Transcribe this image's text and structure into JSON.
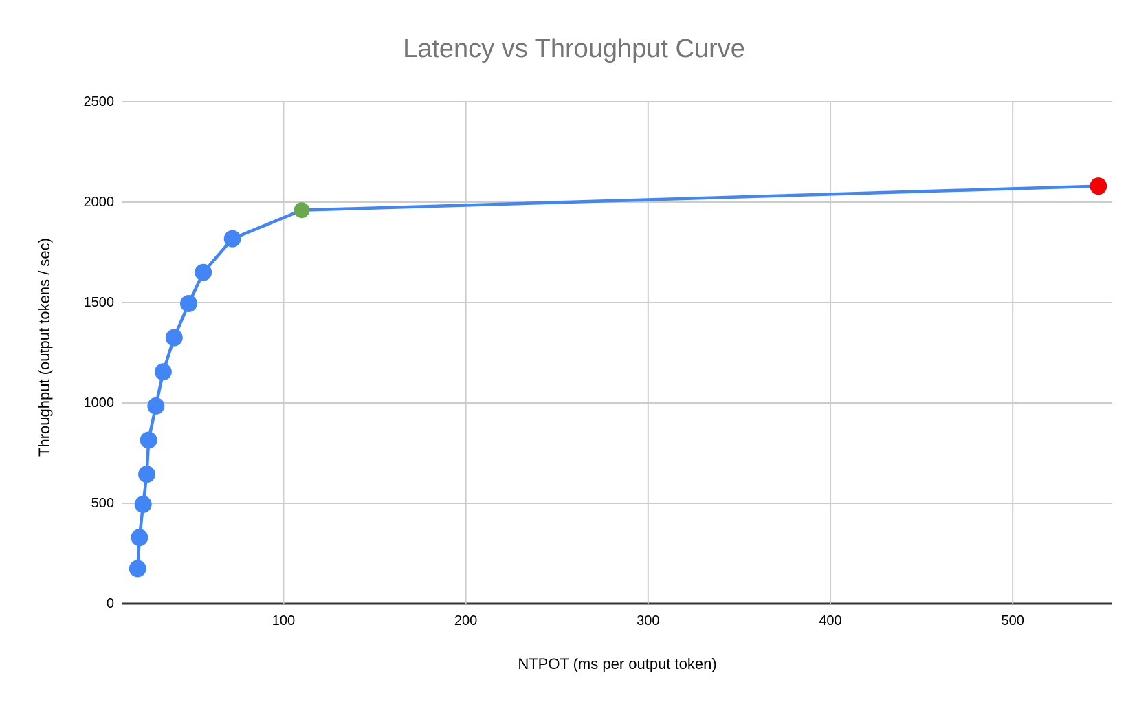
{
  "chart_data": {
    "type": "line",
    "title": "Latency vs Throughput Curve",
    "xlabel": "NTPOT (ms per output token)",
    "ylabel": "Throughput (output tokens / sec)",
    "x_ticks": [
      100,
      200,
      300,
      400,
      500
    ],
    "y_ticks": [
      0,
      500,
      1000,
      1500,
      2000,
      2500
    ],
    "xlim": [
      11.6,
      554.6
    ],
    "ylim": [
      0,
      2500
    ],
    "grid": true,
    "legend": "none",
    "series": [
      {
        "name": "throughput-curve",
        "color": "#4285f4",
        "line_width": 4.5,
        "points": [
          {
            "x": 20,
            "y": 175,
            "marker": "blue"
          },
          {
            "x": 21,
            "y": 330,
            "marker": "blue"
          },
          {
            "x": 23,
            "y": 495,
            "marker": "blue"
          },
          {
            "x": 25,
            "y": 645,
            "marker": "blue"
          },
          {
            "x": 26,
            "y": 815,
            "marker": "blue"
          },
          {
            "x": 30,
            "y": 985,
            "marker": "blue"
          },
          {
            "x": 34,
            "y": 1155,
            "marker": "blue"
          },
          {
            "x": 40,
            "y": 1325,
            "marker": "blue"
          },
          {
            "x": 48,
            "y": 1495,
            "marker": "blue"
          },
          {
            "x": 56,
            "y": 1650,
            "marker": "blue"
          },
          {
            "x": 72,
            "y": 1818,
            "marker": "blue"
          },
          {
            "x": 110,
            "y": 1960,
            "marker": "green"
          },
          {
            "x": 547,
            "y": 2080,
            "marker": "red"
          }
        ]
      }
    ],
    "marker_colors": {
      "blue": "#4285f4",
      "green": "#6aa84f",
      "red": "#f40000"
    },
    "colors": {
      "title": "#757575",
      "axis_text": "#000000",
      "gridline": "#cccccc",
      "baseline": "#333333",
      "background": "#ffffff"
    }
  }
}
